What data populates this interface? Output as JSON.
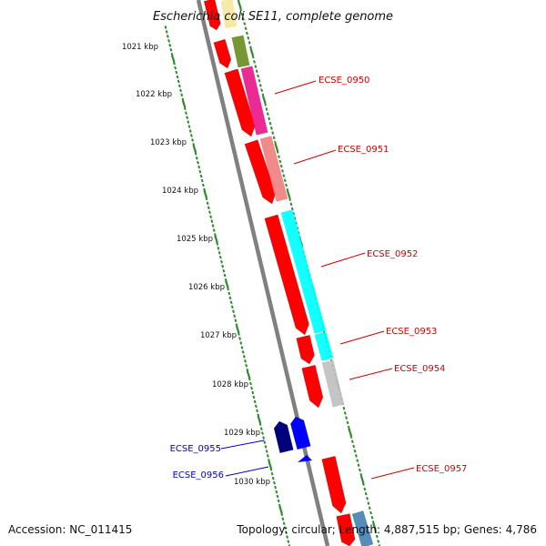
{
  "title": "Escherichia coli SE11, complete genome",
  "footer": {
    "accession": "Accession: NC_011415",
    "summary": "Topology: circular; Length: 4,887,515 bp; Genes: 4,786"
  },
  "axis": {
    "tick_labels": [
      "1021 kbp",
      "1022 kbp",
      "1023 kbp",
      "1024 kbp",
      "1025 kbp",
      "1026 kbp",
      "1027 kbp",
      "1028 kbp",
      "1029 kbp",
      "1030 kbp"
    ]
  },
  "colors": {
    "backbone": "#808080",
    "tick": "#2e8b2e",
    "forward_label": "#d40000",
    "reverse_label": "#0000c8",
    "cds": "#ff0000"
  },
  "genes": [
    {
      "label": "ECSE_0950",
      "strand": "forward",
      "color": "#e8198b"
    },
    {
      "label": "ECSE_0951",
      "strand": "forward",
      "color": "#f08080"
    },
    {
      "label": "ECSE_0952",
      "strand": "forward",
      "color": "#00ffff"
    },
    {
      "label": "ECSE_0953",
      "strand": "forward",
      "color": "#00ffff"
    },
    {
      "label": "ECSE_0954",
      "strand": "forward",
      "color": "#c0c0c0"
    },
    {
      "label": "ECSE_0955",
      "strand": "reverse",
      "color": "#00007a"
    },
    {
      "label": "ECSE_0956",
      "strand": "reverse",
      "color": "#0000ff"
    },
    {
      "label": "ECSE_0957",
      "strand": "forward",
      "color": "#ff0000"
    }
  ],
  "unlabeled_colors": [
    "#f5e6a0",
    "#6b8e23",
    "#4682b4"
  ]
}
